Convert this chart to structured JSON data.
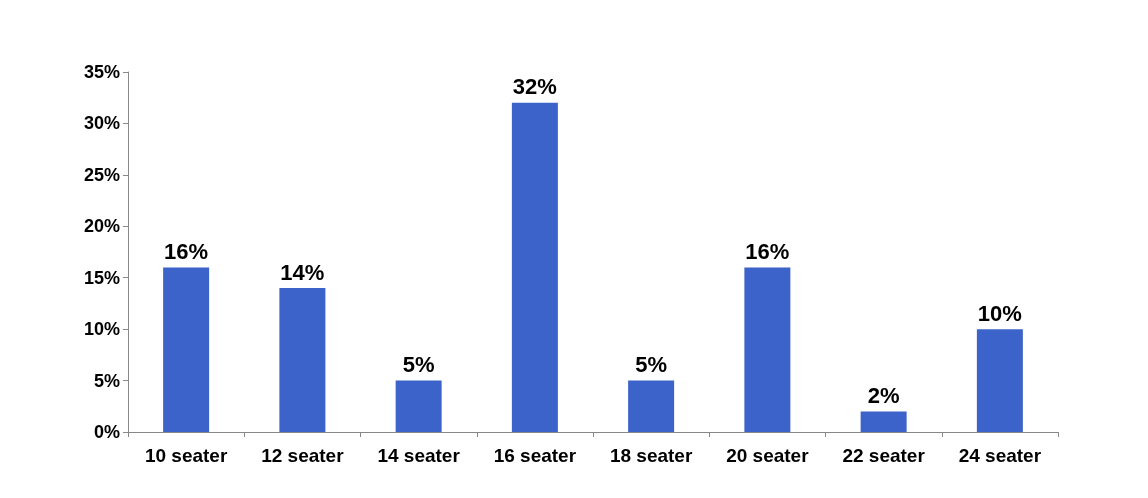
{
  "chart_data": {
    "type": "bar",
    "categories": [
      "10 seater",
      "12 seater",
      "14 seater",
      "16 seater",
      "18 seater",
      "20 seater",
      "22 seater",
      "24 seater"
    ],
    "values": [
      16,
      14,
      5,
      32,
      5,
      16,
      2,
      10
    ],
    "value_labels": [
      "16%",
      "14%",
      "5%",
      "32%",
      "5%",
      "16%",
      "2%",
      "10%"
    ],
    "color": "#3c63c9",
    "ylim": [
      0,
      35
    ],
    "yticks": [
      {
        "value": 0,
        "label": "0%"
      },
      {
        "value": 5,
        "label": "5%"
      },
      {
        "value": 10,
        "label": "10%"
      },
      {
        "value": 15,
        "label": "15%"
      },
      {
        "value": 20,
        "label": "20%"
      },
      {
        "value": 25,
        "label": "25%"
      },
      {
        "value": 30,
        "label": "30%"
      },
      {
        "value": 35,
        "label": "35%"
      }
    ],
    "grid": false
  }
}
